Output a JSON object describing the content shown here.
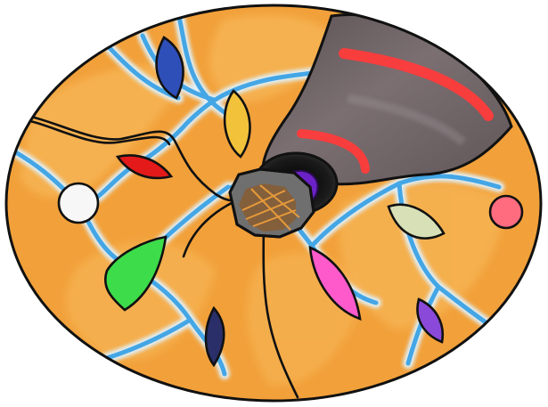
{
  "image": {
    "description_text": "",
    "palette": {
      "background": "#ffffff",
      "disc_orange": "#f2a13a",
      "disc_light_orange": "#f7b85a",
      "river_blue": "#45a6e6",
      "river_glow": "#dff3ff",
      "outline": "#111111",
      "hole_dark": "#2b2b2b",
      "hole_purple": "#6b22c7",
      "dark_sector": "#6f6466",
      "dark_sector_light": "#8b8083",
      "red_bands": "#ff3b3b",
      "hub_brown": "#8b5a2b",
      "hub_gray": "#6f6f6f"
    },
    "gems": [
      {
        "name": "blue-gem",
        "color": "#2f4fb8"
      },
      {
        "name": "yellow-gem",
        "color": "#f2c23a"
      },
      {
        "name": "red-gem",
        "color": "#e41a1a"
      },
      {
        "name": "white-gem",
        "color": "#f7f7f7"
      },
      {
        "name": "green-gem",
        "color": "#3ddc4b"
      },
      {
        "name": "navy-gem",
        "color": "#2a2f6a"
      },
      {
        "name": "pink-gem",
        "color": "#ff5acb"
      },
      {
        "name": "sage-gem",
        "color": "#d7e0b6"
      },
      {
        "name": "rose-gem",
        "color": "#ff6b7f"
      },
      {
        "name": "violet-gem",
        "color": "#8b49d9"
      }
    ]
  }
}
